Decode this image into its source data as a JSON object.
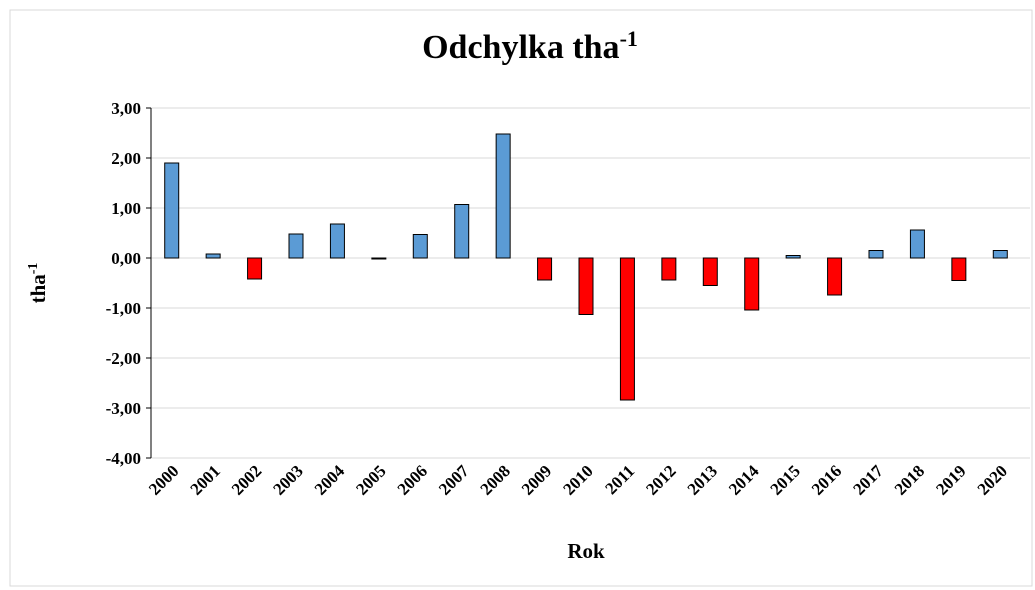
{
  "chart_data": {
    "type": "bar",
    "title": "Odchylka tha",
    "title_superscript": "-1",
    "x_label": "Rok",
    "y_label": "tha",
    "y_label_superscript": "-1",
    "categories": [
      "2000",
      "2001",
      "2002",
      "2003",
      "2004",
      "2005",
      "2006",
      "2007",
      "2008",
      "2009",
      "2010",
      "2011",
      "2012",
      "2013",
      "2014",
      "2015",
      "2016",
      "2017",
      "2018",
      "2019",
      "2020"
    ],
    "values": [
      1.9,
      0.08,
      -0.42,
      0.48,
      0.68,
      -0.02,
      0.47,
      1.07,
      2.48,
      -0.44,
      -1.13,
      -2.84,
      -0.44,
      -0.55,
      -1.04,
      0.05,
      -0.74,
      0.15,
      0.56,
      -0.45,
      0.15
    ],
    "positive_color": "#5b9bd5",
    "negative_color": "#ff0000",
    "ylim": [
      -4,
      3
    ],
    "yticks": [
      {
        "value": -4,
        "label": "-4,00"
      },
      {
        "value": -3,
        "label": "-3,00"
      },
      {
        "value": -2,
        "label": "-2,00"
      },
      {
        "value": -1,
        "label": "-1,00"
      },
      {
        "value": 0,
        "label": "0,00"
      },
      {
        "value": 1,
        "label": "1,00"
      },
      {
        "value": 2,
        "label": "2,00"
      },
      {
        "value": 3,
        "label": "3,00"
      }
    ],
    "grid": true
  }
}
